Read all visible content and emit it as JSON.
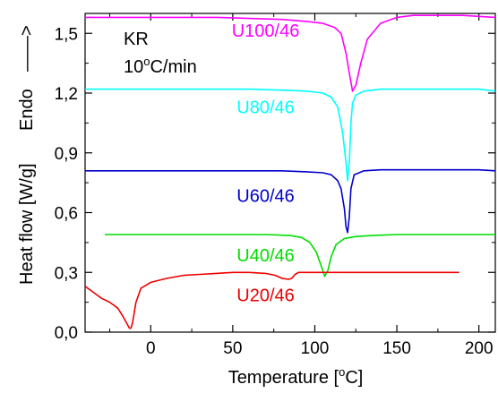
{
  "chart_data": {
    "type": "line",
    "title": "",
    "xlabel": "Temperature [",
    "xlabel_sup": "o",
    "xlabel_tail": "C]",
    "ylabel": "Heat flow [W/g]",
    "ylabel_endo": "Endo",
    "ylabel_arrow": "——>",
    "xlim": [
      -40,
      210
    ],
    "ylim": [
      0.0,
      1.6
    ],
    "xticks": [
      0,
      50,
      100,
      150,
      200
    ],
    "xtick_labels": [
      "0",
      "50",
      "100",
      "150",
      "200"
    ],
    "yticks": [
      0.0,
      0.3,
      0.6,
      0.9,
      1.2,
      1.5
    ],
    "ytick_labels": [
      "0,0",
      "0,3",
      "0,6",
      "0,9",
      "1,2",
      "1,5"
    ],
    "annotations": {
      "sample": "KR",
      "rate_prefix": "10",
      "rate_sup": "o",
      "rate_suffix": "C/min"
    },
    "grid": false,
    "series": [
      {
        "name": "U100/46",
        "color": "#ff00ff",
        "label_pos": [
          70,
          1.52
        ],
        "x": [
          -40,
          -20,
          0,
          20,
          40,
          60,
          80,
          95,
          105,
          112,
          116,
          119,
          121,
          123,
          125,
          128,
          132,
          140,
          150,
          160,
          170,
          180,
          190,
          200,
          210
        ],
        "y": [
          1.58,
          1.58,
          1.58,
          1.58,
          1.58,
          1.575,
          1.57,
          1.56,
          1.55,
          1.53,
          1.5,
          1.4,
          1.3,
          1.21,
          1.24,
          1.35,
          1.47,
          1.55,
          1.58,
          1.59,
          1.59,
          1.59,
          1.59,
          1.585,
          1.58
        ]
      },
      {
        "name": "U80/46",
        "color": "#00ffff",
        "label_pos": [
          70,
          1.135
        ],
        "x": [
          -40,
          -20,
          0,
          20,
          40,
          60,
          80,
          95,
          105,
          110,
          114,
          117,
          119,
          120,
          121,
          122,
          123,
          125,
          130,
          140,
          160,
          180,
          200,
          210
        ],
        "y": [
          1.22,
          1.22,
          1.22,
          1.22,
          1.22,
          1.22,
          1.215,
          1.21,
          1.2,
          1.18,
          1.13,
          1.0,
          0.85,
          0.76,
          0.85,
          1.05,
          1.15,
          1.19,
          1.21,
          1.22,
          1.22,
          1.22,
          1.22,
          1.21
        ]
      },
      {
        "name": "U60/46",
        "color": "#0000cc",
        "label_pos": [
          70,
          0.69
        ],
        "x": [
          -40,
          -20,
          0,
          20,
          40,
          60,
          80,
          95,
          105,
          110,
          114,
          116,
          118,
          119,
          120,
          121,
          122,
          124,
          130,
          140,
          160,
          180,
          200,
          210
        ],
        "y": [
          0.81,
          0.81,
          0.81,
          0.81,
          0.81,
          0.81,
          0.81,
          0.805,
          0.8,
          0.79,
          0.76,
          0.72,
          0.62,
          0.53,
          0.5,
          0.58,
          0.72,
          0.79,
          0.81,
          0.815,
          0.815,
          0.815,
          0.815,
          0.81
        ]
      },
      {
        "name": "U40/46",
        "color": "#00dd00",
        "label_pos": [
          70,
          0.39
        ],
        "x": [
          -28,
          -10,
          10,
          30,
          50,
          70,
          85,
          92,
          97,
          101,
          104,
          106,
          108,
          110,
          113,
          118,
          125,
          135,
          150,
          170,
          190,
          210
        ],
        "y": [
          0.49,
          0.49,
          0.49,
          0.49,
          0.49,
          0.49,
          0.485,
          0.475,
          0.45,
          0.4,
          0.33,
          0.28,
          0.31,
          0.38,
          0.44,
          0.47,
          0.48,
          0.485,
          0.49,
          0.49,
          0.49,
          0.49
        ]
      },
      {
        "name": "U20/46",
        "color": "#ee0000",
        "label_pos": [
          70,
          0.19
        ],
        "x": [
          -40,
          -35,
          -30,
          -25,
          -20,
          -17,
          -15,
          -13,
          -12,
          -11,
          -9,
          -6,
          0,
          10,
          20,
          30,
          40,
          50,
          60,
          70,
          76,
          80,
          84,
          86,
          88,
          90,
          100,
          120,
          140,
          160,
          180,
          188
        ],
        "y": [
          0.23,
          0.2,
          0.17,
          0.15,
          0.12,
          0.08,
          0.05,
          0.02,
          0.02,
          0.05,
          0.15,
          0.22,
          0.25,
          0.27,
          0.285,
          0.29,
          0.295,
          0.3,
          0.3,
          0.295,
          0.285,
          0.27,
          0.265,
          0.27,
          0.29,
          0.3,
          0.3,
          0.3,
          0.3,
          0.3,
          0.3,
          0.3
        ]
      }
    ]
  }
}
